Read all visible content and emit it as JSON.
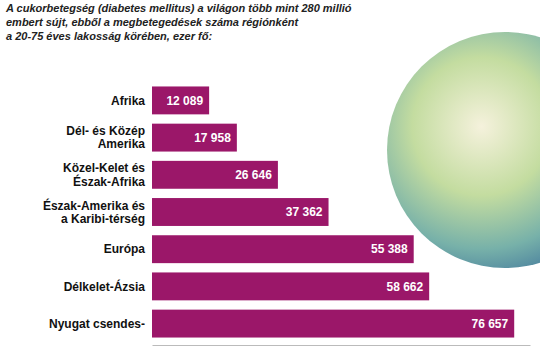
{
  "chart_data": {
    "type": "bar",
    "title": "A cukorbetegség (diabetes mellitus) a világon több mint 280 millió\nembert sújt, ebből a megbetegedések száma régiónként\na 20-75 éves lakosság körében, ezer fő:",
    "orientation": "horizontal",
    "categories": [
      "Afrika",
      "Dél- és Közép\nAmerika",
      "Közel-Kelet és\nÉszak-Afrika",
      "Észak-Amerika és\na Karibi-térség",
      "Európa",
      "Délkelet-Ázsia",
      "Nyugat csendes-"
    ],
    "values": [
      12089,
      17958,
      26646,
      37362,
      55388,
      58662,
      76657
    ],
    "value_labels": [
      "12 089",
      "17 958",
      "26 646",
      "37 362",
      "55 388",
      "58 662",
      "76 657"
    ],
    "color": "#9b1769",
    "xlim": [
      0,
      80000
    ],
    "data_labels": true,
    "tick_labels": "y",
    "grid": false
  }
}
